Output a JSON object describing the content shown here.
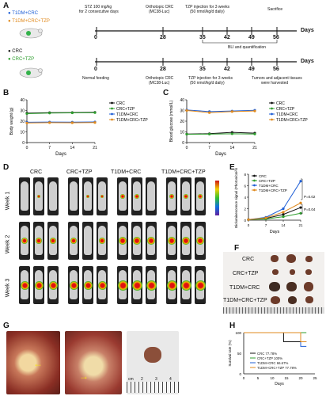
{
  "panelA": {
    "letter": "A",
    "legend_top": [
      {
        "label": "T1DM+CRC",
        "color": "#1f5fd6"
      },
      {
        "label": "T1DM+CRC+TZP",
        "color": "#e08a1e"
      }
    ],
    "legend_bottom": [
      {
        "label": "CRC",
        "color": "#111111"
      },
      {
        "label": "CRC+TZP",
        "color": "#2e9e2e"
      }
    ],
    "top_annotations": {
      "stz": "STZ 100 mg/kg",
      "stz2": "for 2 consecutive days",
      "orth": "Orthotopic CRC",
      "orth2": "(MC38-Luc)",
      "tzp": "TZP injection for 3 weeks",
      "tzp2": "(50 nmol/kg/d daily)",
      "sac": "Sacrifice",
      "bli": "BLI and quantification"
    },
    "bottom_annotations": {
      "normal": "Normal feeding",
      "orth": "Orthotopic CRC",
      "orth2": "(MC38-Luc)",
      "tzp": "TZP injection for 3 weeks",
      "tzp2": "(50 nmol/kg/d daily)",
      "tumors": "Tumors and adjacent tissues",
      "tumors2": "were harvested"
    },
    "ticks": [
      "0",
      "28",
      "35",
      "42",
      "49",
      "56"
    ],
    "axis_label": "Days"
  },
  "panelB": {
    "letter": "B",
    "chart_data": {
      "type": "line",
      "ylabel": "Body weight (g)",
      "xlabel": "Days",
      "x": [
        0,
        7,
        14,
        21
      ],
      "ylim": [
        0,
        40
      ],
      "yticks": [
        "0",
        "10",
        "20",
        "30",
        "40"
      ],
      "series": [
        {
          "name": "CRC",
          "color": "#111111",
          "values": [
            27.5,
            28.0,
            28.1,
            28.3
          ]
        },
        {
          "name": "CRC+TZP",
          "color": "#2e9e2e",
          "values": [
            27.0,
            27.6,
            27.8,
            28.0
          ]
        },
        {
          "name": "T1DM+CRC",
          "color": "#1f5fd6",
          "values": [
            19.0,
            19.2,
            19.1,
            19.3
          ]
        },
        {
          "name": "T1DM+CRC+TZP",
          "color": "#e08a1e",
          "values": [
            18.3,
            18.6,
            18.5,
            18.7
          ]
        }
      ]
    }
  },
  "panelC": {
    "letter": "C",
    "chart_data": {
      "type": "line",
      "ylabel": "Blood glucose (mmol/L)",
      "xlabel": "Days",
      "x": [
        0,
        7,
        14,
        21
      ],
      "ylim": [
        0,
        40
      ],
      "yticks": [
        "0",
        "10",
        "20",
        "30",
        "40"
      ],
      "series": [
        {
          "name": "CRC",
          "color": "#111111",
          "values": [
            8.0,
            8.3,
            9.5,
            8.8
          ]
        },
        {
          "name": "CRC+TZP",
          "color": "#2e9e2e",
          "values": [
            7.8,
            7.9,
            8.2,
            8.0
          ]
        },
        {
          "name": "T1DM+CRC",
          "color": "#1f5fd6",
          "values": [
            30.5,
            29.0,
            29.5,
            30.2
          ]
        },
        {
          "name": "T1DM+CRC+TZP",
          "color": "#e08a1e",
          "values": [
            30.0,
            28.0,
            29.0,
            29.5
          ]
        }
      ]
    }
  },
  "panelD": {
    "letter": "D",
    "columns": [
      "CRC",
      "CRC+TZP",
      "T1DM+CRC",
      "T1DM+CRC+TZP"
    ],
    "rows": [
      "Week 1",
      "Week 2",
      "Week 3"
    ]
  },
  "panelE": {
    "letter": "E",
    "chart_data": {
      "type": "line",
      "ylabel": "Bioluminescence signal (Photon/cm²/s)",
      "xlabel": "Days",
      "x": [
        0,
        7,
        14,
        21
      ],
      "ylim": [
        0,
        8
      ],
      "yticks": [
        "0",
        "2",
        "4",
        "6",
        "8"
      ],
      "annotations": [
        "P=0.02",
        "P=0.04"
      ],
      "series": [
        {
          "name": "CRC",
          "color": "#111111",
          "values": [
            0.1,
            0.3,
            1.0,
            2.2
          ]
        },
        {
          "name": "CRC+TZP",
          "color": "#2e9e2e",
          "values": [
            0.1,
            0.2,
            0.6,
            1.2
          ]
        },
        {
          "name": "T1DM+CRC",
          "color": "#1f5fd6",
          "values": [
            0.1,
            0.5,
            2.0,
            6.8
          ]
        },
        {
          "name": "T1DM+CRC+TZP",
          "color": "#e08a1e",
          "values": [
            0.1,
            0.4,
            1.4,
            3.0
          ]
        }
      ]
    }
  },
  "panelF": {
    "letter": "F",
    "groups": [
      "CRC",
      "CRC+TZP",
      "T1DM+CRC",
      "T1DM+CRC+TZP"
    ]
  },
  "panelG": {
    "letter": "G",
    "ruler_marks": [
      "cm",
      "2",
      "3",
      "4"
    ]
  },
  "panelH": {
    "letter": "H",
    "chart_data": {
      "type": "line",
      "ylabel": "Survival rate (%)",
      "xlabel": "Days",
      "xticks": [
        "0",
        "5",
        "10",
        "15",
        "20",
        "25"
      ],
      "yticks": [
        "0",
        "50",
        "100"
      ],
      "xlim": [
        0,
        25
      ],
      "ylim": [
        0,
        100
      ],
      "series": [
        {
          "name": "CRC",
          "color": "#111111",
          "legend": "CRC 77.78%",
          "final": 77.78
        },
        {
          "name": "CRC+TZP",
          "color": "#2e9e2e",
          "legend": "CRC+TZP 100%",
          "final": 100
        },
        {
          "name": "T1DM+CRC",
          "color": "#1f5fd6",
          "legend": "T1DM+CRC 66.67%",
          "final": 66.67
        },
        {
          "name": "T1DM+CRC+TZP",
          "color": "#e08a1e",
          "legend": "T1DM+CRC+TZP 77.78%",
          "final": 77.78
        }
      ]
    }
  }
}
